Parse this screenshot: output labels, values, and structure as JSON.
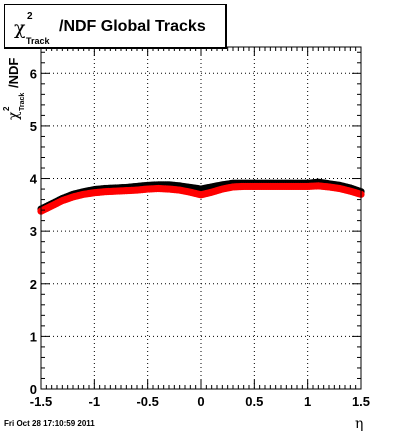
{
  "title": {
    "symbol": "χ",
    "superscript": "2",
    "subscript": "Track",
    "text": "/NDF  Global Tracks"
  },
  "footer": "Fri Oct 28 17:10:59 2011",
  "chart_data": {
    "type": "scatter",
    "title": "χ²_Track/NDF  Global Tracks",
    "xlabel": "η",
    "ylabel": "χ²_Track/NDF",
    "xlim": [
      -1.5,
      1.5
    ],
    "ylim": [
      0,
      6.5
    ],
    "xticks": [
      "-1.5",
      "-1",
      "-0.5",
      "0",
      "0.5",
      "1",
      "1.5"
    ],
    "xtick_values": [
      -1.5,
      -1,
      -0.5,
      0,
      0.5,
      1,
      1.5
    ],
    "yticks": [
      "0",
      "1",
      "2",
      "3",
      "4",
      "5",
      "6"
    ],
    "ytick_values": [
      0,
      1,
      2,
      3,
      4,
      5,
      6
    ],
    "grid": true,
    "series": [
      {
        "color": "#000000",
        "x": [
          -1.5,
          -1.4,
          -1.3,
          -1.2,
          -1.1,
          -1.0,
          -0.9,
          -0.8,
          -0.7,
          -0.6,
          -0.5,
          -0.4,
          -0.3,
          -0.2,
          -0.1,
          0.0,
          0.1,
          0.2,
          0.3,
          0.4,
          0.5,
          0.6,
          0.7,
          0.8,
          0.9,
          1.0,
          1.1,
          1.2,
          1.3,
          1.4,
          1.5
        ],
        "y": [
          3.42,
          3.52,
          3.62,
          3.7,
          3.75,
          3.79,
          3.81,
          3.82,
          3.83,
          3.85,
          3.87,
          3.88,
          3.88,
          3.86,
          3.83,
          3.8,
          3.84,
          3.88,
          3.91,
          3.91,
          3.91,
          3.91,
          3.91,
          3.91,
          3.91,
          3.91,
          3.93,
          3.9,
          3.87,
          3.82,
          3.75
        ]
      },
      {
        "color": "#ff0000",
        "x": [
          -1.5,
          -1.4,
          -1.3,
          -1.2,
          -1.1,
          -1.0,
          -0.9,
          -0.8,
          -0.7,
          -0.6,
          -0.5,
          -0.4,
          -0.3,
          -0.2,
          -0.1,
          0.0,
          0.1,
          0.2,
          0.3,
          0.4,
          0.5,
          0.6,
          0.7,
          0.8,
          0.9,
          1.0,
          1.1,
          1.2,
          1.3,
          1.4,
          1.5
        ],
        "y": [
          3.38,
          3.48,
          3.58,
          3.65,
          3.7,
          3.73,
          3.75,
          3.76,
          3.77,
          3.78,
          3.8,
          3.81,
          3.8,
          3.78,
          3.74,
          3.69,
          3.74,
          3.8,
          3.84,
          3.85,
          3.85,
          3.85,
          3.85,
          3.85,
          3.85,
          3.85,
          3.86,
          3.84,
          3.81,
          3.76,
          3.7
        ]
      }
    ]
  }
}
